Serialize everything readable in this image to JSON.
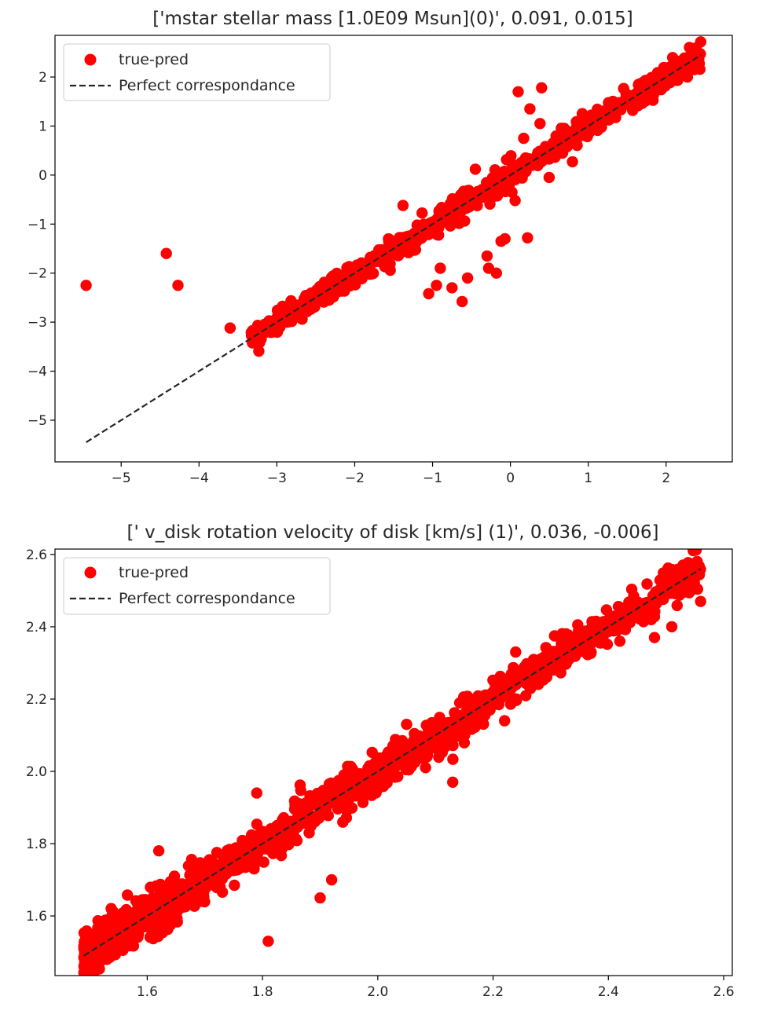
{
  "chart_data": [
    {
      "type": "scatter",
      "title": "['mstar stellar mass [1.0E09 Msun](0)', 0.091, 0.015]",
      "xlabel": "",
      "ylabel": "",
      "xlim": [
        -5.85,
        2.85
      ],
      "ylim": [
        -5.85,
        2.85
      ],
      "xticks": [
        -5,
        -4,
        -3,
        -2,
        -1,
        0,
        1,
        2
      ],
      "yticks": [
        -5,
        -4,
        -3,
        -2,
        -1,
        0,
        1,
        2
      ],
      "legend": {
        "placement": "upper-left",
        "entries": [
          "true-pred",
          "Perfect correspondance"
        ]
      },
      "series": [
        {
          "name": "true-pred",
          "marker": "circle",
          "color": "#ff0000",
          "band": {
            "x_range": [
              -3.35,
              2.45
            ],
            "scatter": 0.13,
            "count": 700
          },
          "outliers": [
            [
              -5.45,
              -2.25
            ],
            [
              -4.42,
              -1.6
            ],
            [
              -4.27,
              -2.25
            ],
            [
              -3.6,
              -3.12
            ],
            [
              -1.38,
              -0.62
            ],
            [
              -1.05,
              -2.42
            ],
            [
              -0.95,
              -2.25
            ],
            [
              -0.9,
              -1.9
            ],
            [
              -0.75,
              -2.3
            ],
            [
              -0.62,
              -2.58
            ],
            [
              -0.55,
              -2.1
            ],
            [
              -0.3,
              -1.65
            ],
            [
              -0.28,
              -1.9
            ],
            [
              -0.18,
              -2.0
            ],
            [
              -0.12,
              -1.35
            ],
            [
              -0.07,
              -1.3
            ],
            [
              0.22,
              -1.28
            ],
            [
              0.1,
              1.7
            ],
            [
              0.17,
              0.75
            ],
            [
              0.25,
              1.35
            ],
            [
              0.38,
              1.05
            ],
            [
              0.4,
              1.78
            ],
            [
              -0.45,
              0.12
            ],
            [
              0.02,
              -0.35
            ],
            [
              0.06,
              -0.52
            ]
          ]
        },
        {
          "name": "Perfect correspondance",
          "line": "dashed",
          "color": "#000000",
          "x": [
            -5.45,
            2.45
          ],
          "y": [
            -5.45,
            2.45
          ]
        }
      ]
    },
    {
      "type": "scatter",
      "title": "[' v_disk rotation velocity of disk [km/s] (1)', 0.036, -0.006]",
      "xlabel": "",
      "ylabel": "",
      "xlim": [
        1.44,
        2.615
      ],
      "ylim": [
        1.435,
        2.615
      ],
      "xticks": [
        1.6,
        1.8,
        2.0,
        2.2,
        2.4,
        2.6
      ],
      "yticks": [
        1.6,
        1.8,
        2.0,
        2.2,
        2.4,
        2.6
      ],
      "legend": {
        "placement": "upper-left",
        "entries": [
          "true-pred",
          "Perfect correspondance"
        ]
      },
      "series": [
        {
          "name": "true-pred",
          "marker": "circle",
          "color": "#ff0000",
          "band": {
            "x_range": [
              1.49,
              2.56
            ],
            "scatter": 0.028,
            "count": 1400
          },
          "outliers": [
            [
              1.81,
              1.53
            ],
            [
              1.62,
              1.78
            ],
            [
              1.79,
              1.94
            ],
            [
              1.92,
              1.7
            ],
            [
              2.22,
              2.14
            ],
            [
              2.3,
              2.32
            ],
            [
              2.37,
              2.33
            ],
            [
              2.42,
              2.36
            ],
            [
              2.48,
              2.37
            ],
            [
              2.51,
              2.4
            ],
            [
              2.56,
              2.47
            ],
            [
              2.52,
              2.54
            ],
            [
              2.13,
              1.97
            ],
            [
              1.9,
              1.65
            ],
            [
              2.05,
              2.13
            ]
          ]
        },
        {
          "name": "Perfect correspondance",
          "line": "dashed",
          "color": "#000000",
          "x": [
            1.49,
            2.56
          ],
          "y": [
            1.49,
            2.56
          ]
        }
      ]
    }
  ]
}
